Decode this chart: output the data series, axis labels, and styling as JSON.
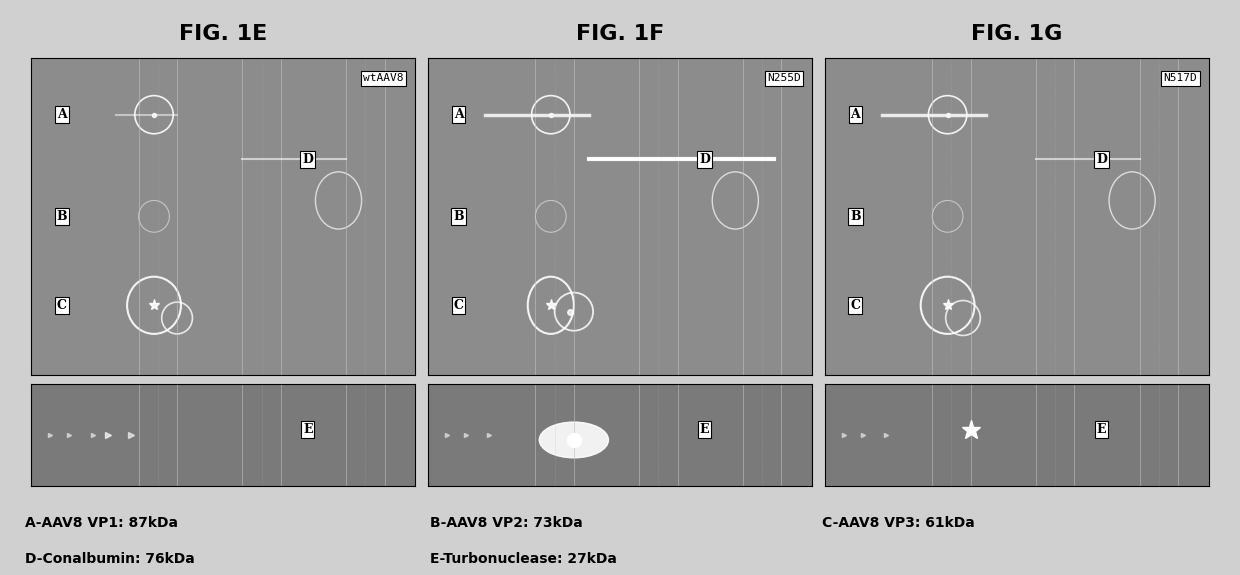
{
  "title": "",
  "fig_titles": [
    "FIG. 1E",
    "FIG. 1F",
    "FIG. 1G"
  ],
  "panel_labels": [
    "wtAAV8",
    "N255D",
    "N517D"
  ],
  "spot_labels": [
    "A",
    "B",
    "C",
    "D",
    "E"
  ],
  "caption_lines": [
    "A-AAV8 VP1: 87kDa        B-AAV8 VP2: 73kDa        C-AAV8 VP3: 61kDa",
    "D-Conalbumin: 76kDa      E-Turbonuclease: 27kDa"
  ],
  "bg_color_dark": "#8a8a8a",
  "bg_color_medium": "#aaaaaa",
  "bg_color_light": "#b8b8b8",
  "panel_bg": "#909090",
  "label_box_color": "#ffffff",
  "label_text_color": "#000000",
  "figsize": [
    12.4,
    5.75
  ],
  "dpi": 100
}
